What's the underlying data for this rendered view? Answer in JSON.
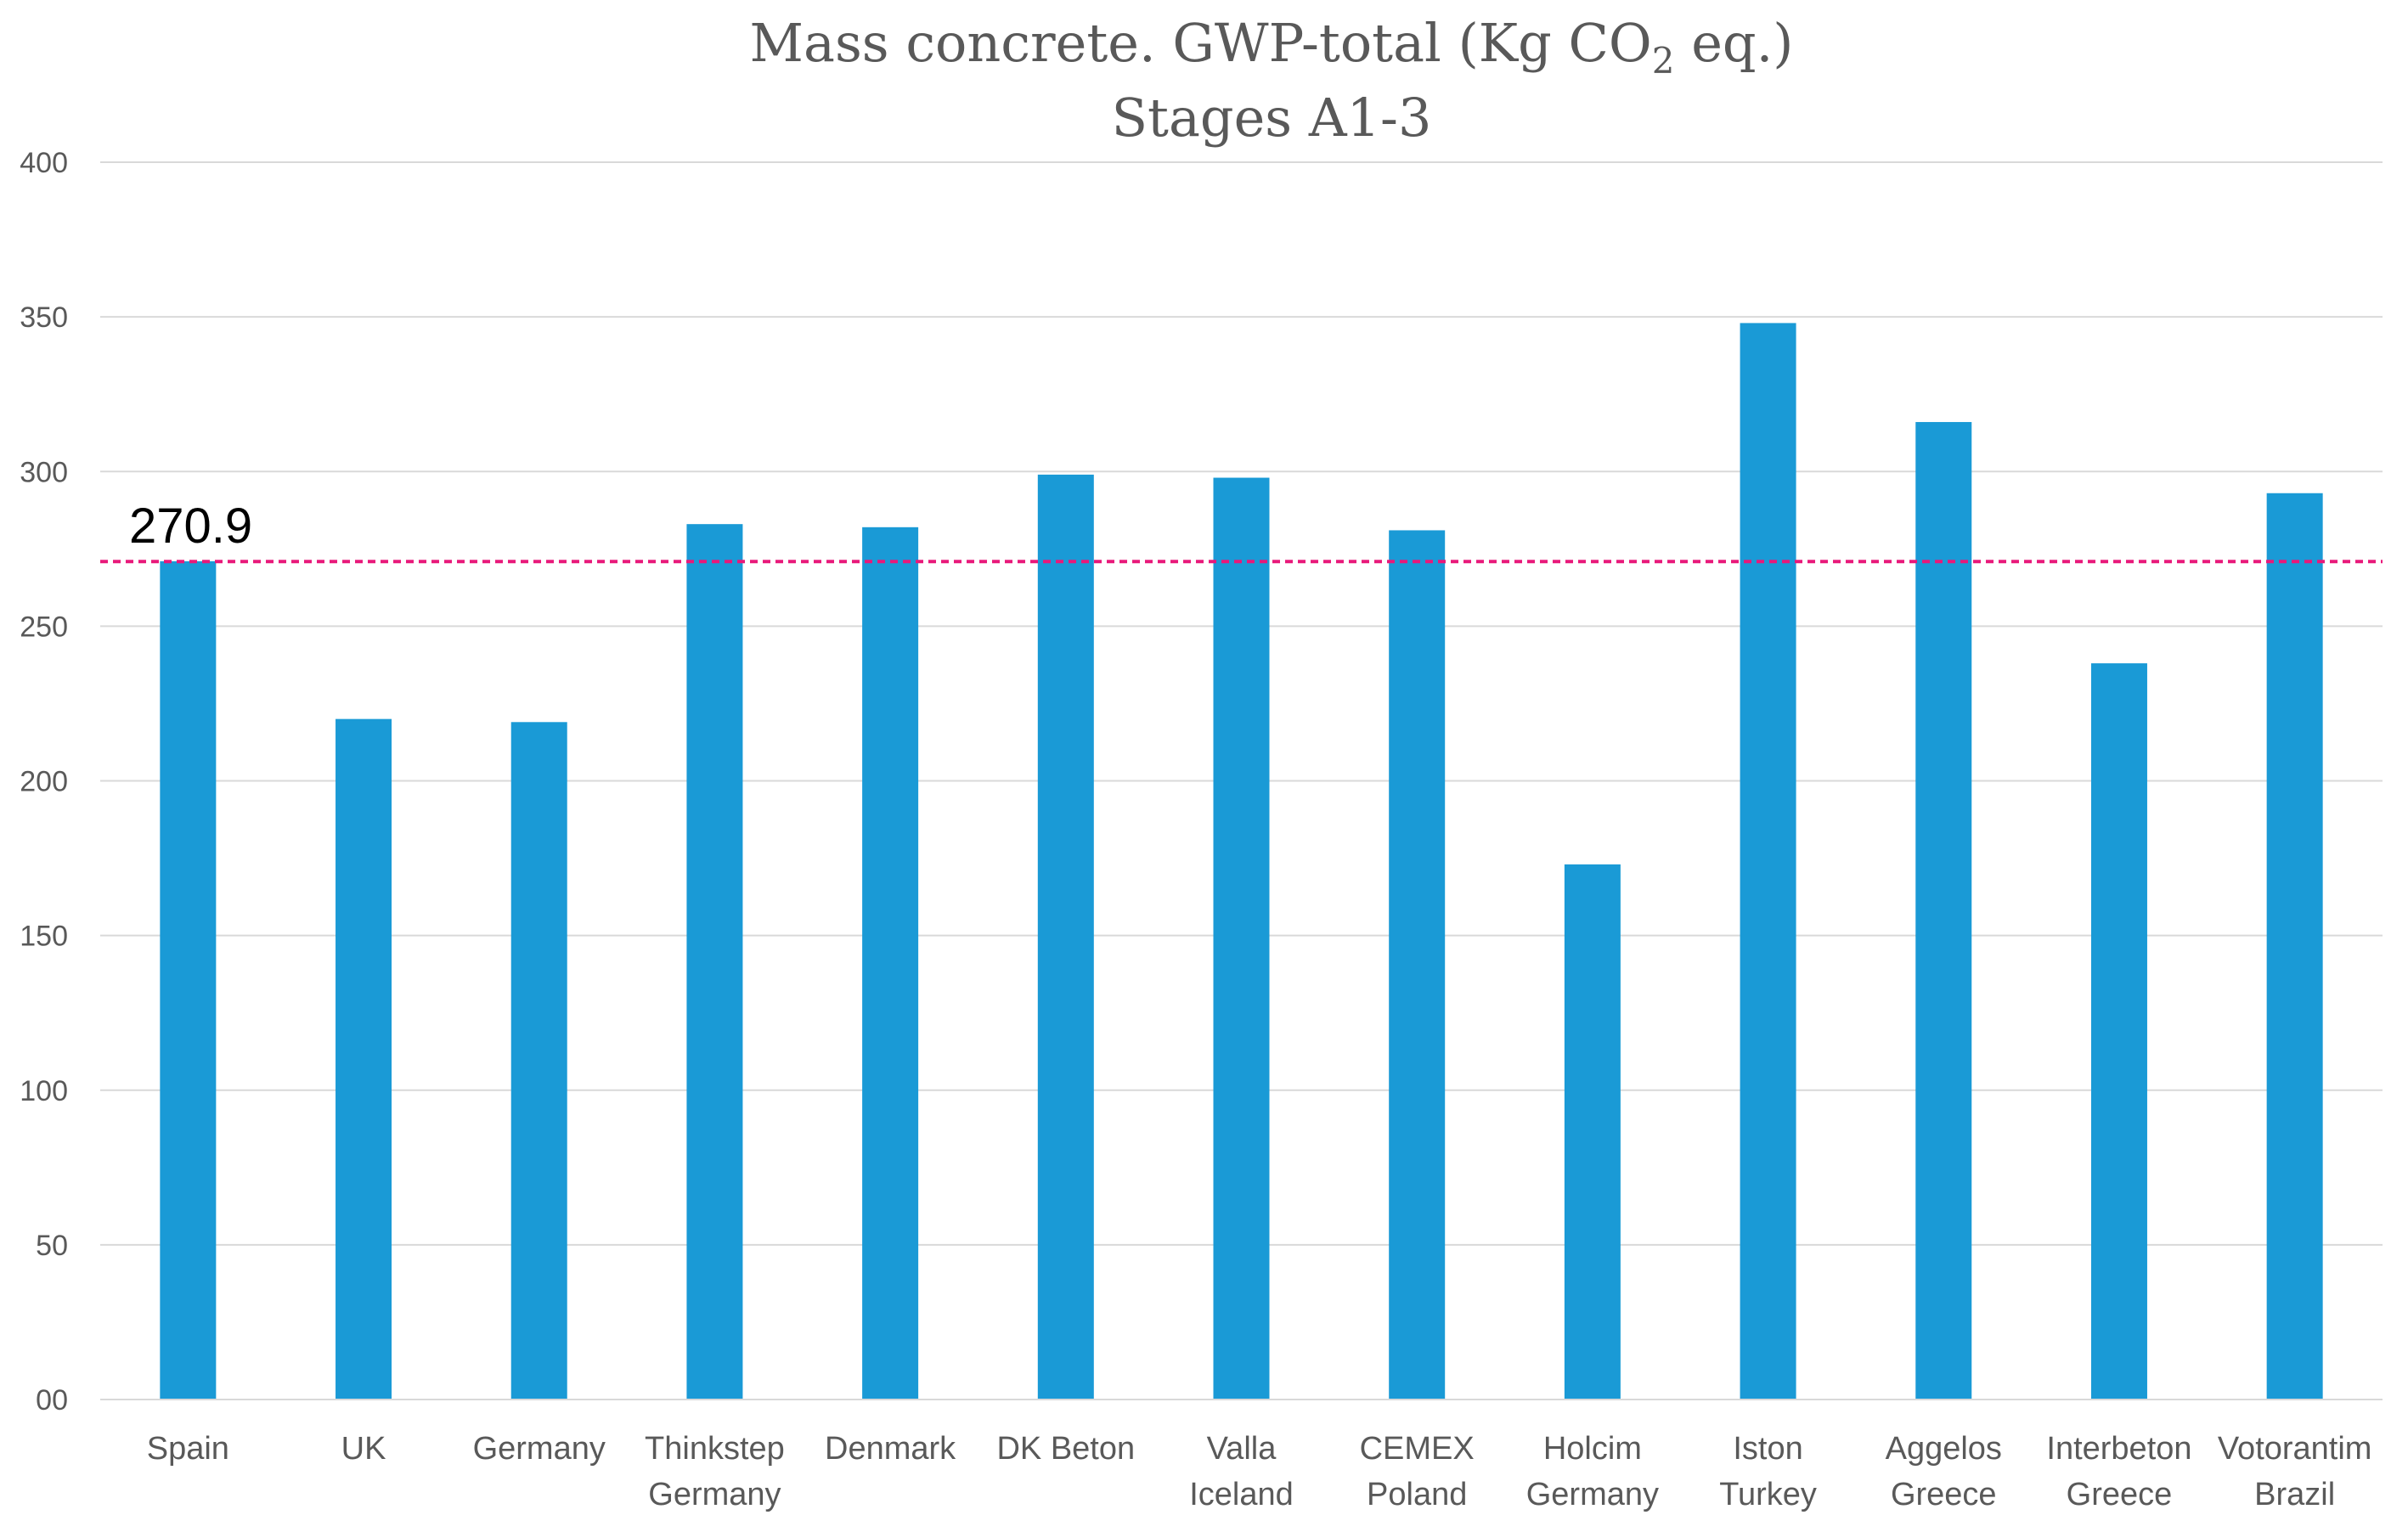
{
  "chart_data": {
    "type": "bar",
    "title": "Mass concrete.   GWP-total (Kg CO",
    "title_subscript": "2",
    "title_suffix": " eq.)",
    "subtitle": "Stages A1-3",
    "xlabel": "",
    "ylabel": "",
    "ylim": [
      0,
      400
    ],
    "yticks": [
      "00",
      "50",
      "100",
      "150",
      "200",
      "250",
      "300",
      "350",
      "400"
    ],
    "grid": true,
    "categories": [
      [
        "Spain"
      ],
      [
        "UK"
      ],
      [
        "Germany"
      ],
      [
        "Thinkstep",
        "Germany"
      ],
      [
        "Denmark"
      ],
      [
        "DK Beton"
      ],
      [
        "Valla",
        "Iceland"
      ],
      [
        "CEMEX",
        "Poland"
      ],
      [
        "Holcim",
        "Germany"
      ],
      [
        "Iston",
        "Turkey"
      ],
      [
        "Aggelos",
        "Greece"
      ],
      [
        "Interbeton",
        "Greece"
      ],
      [
        "Votorantim",
        "Brazil"
      ]
    ],
    "values": [
      271,
      220,
      219,
      283,
      282,
      299,
      298,
      281,
      173,
      348,
      316,
      238,
      293
    ],
    "reference_line": {
      "value": 270.9,
      "label": "270.9",
      "style": "dashed"
    },
    "colors": {
      "bar": "#1a9ad6",
      "reference": "#e8197a",
      "grid": "#d9d9d9",
      "text": "#595959"
    }
  }
}
